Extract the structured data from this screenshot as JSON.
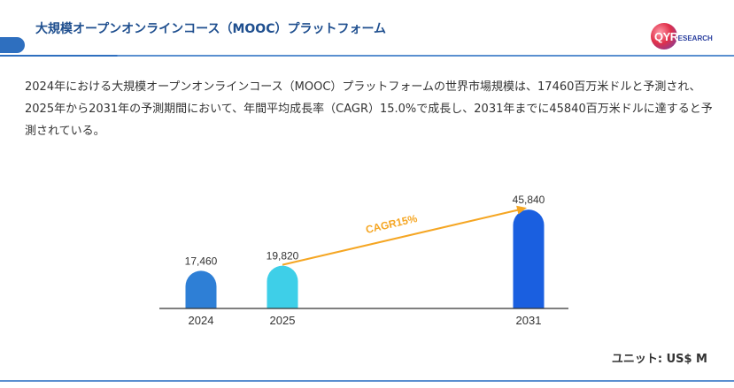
{
  "header": {
    "title": "大規模オープンオンラインコース（MOOC）プラットフォーム",
    "logo_text_main": "QYR",
    "logo_text_sub": "ESEARCH"
  },
  "description": "2024年における大規模オープンオンラインコース（MOOC）プラットフォームの世界市場規模は、17460百万米ドルと予測され、2025年から2031年の予測期間において、年間平均成長率（CAGR）15.0%で成長し、2031年までに45840百万米ドルに達すると予測されている。",
  "unit_label": "ユニット: US$ M",
  "colors": {
    "header_text": "#1f4f8f",
    "header_rule": "#5a8fd0",
    "bar_2024": "#2e7fd6",
    "bar_2025": "#3ecfe8",
    "bar_2031": "#1a5fe0",
    "arrow": "#f5a623",
    "axis": "#333333"
  },
  "chart_data": {
    "type": "bar",
    "categories": [
      "2024",
      "2025",
      "2031"
    ],
    "values": [
      17460,
      19820,
      45840
    ],
    "value_labels": [
      "17,460",
      "19,820",
      "45,840"
    ],
    "annotation": "CAGR15%",
    "annotation_from": "2025",
    "annotation_to": "2031",
    "ylim": [
      0,
      50000
    ]
  }
}
